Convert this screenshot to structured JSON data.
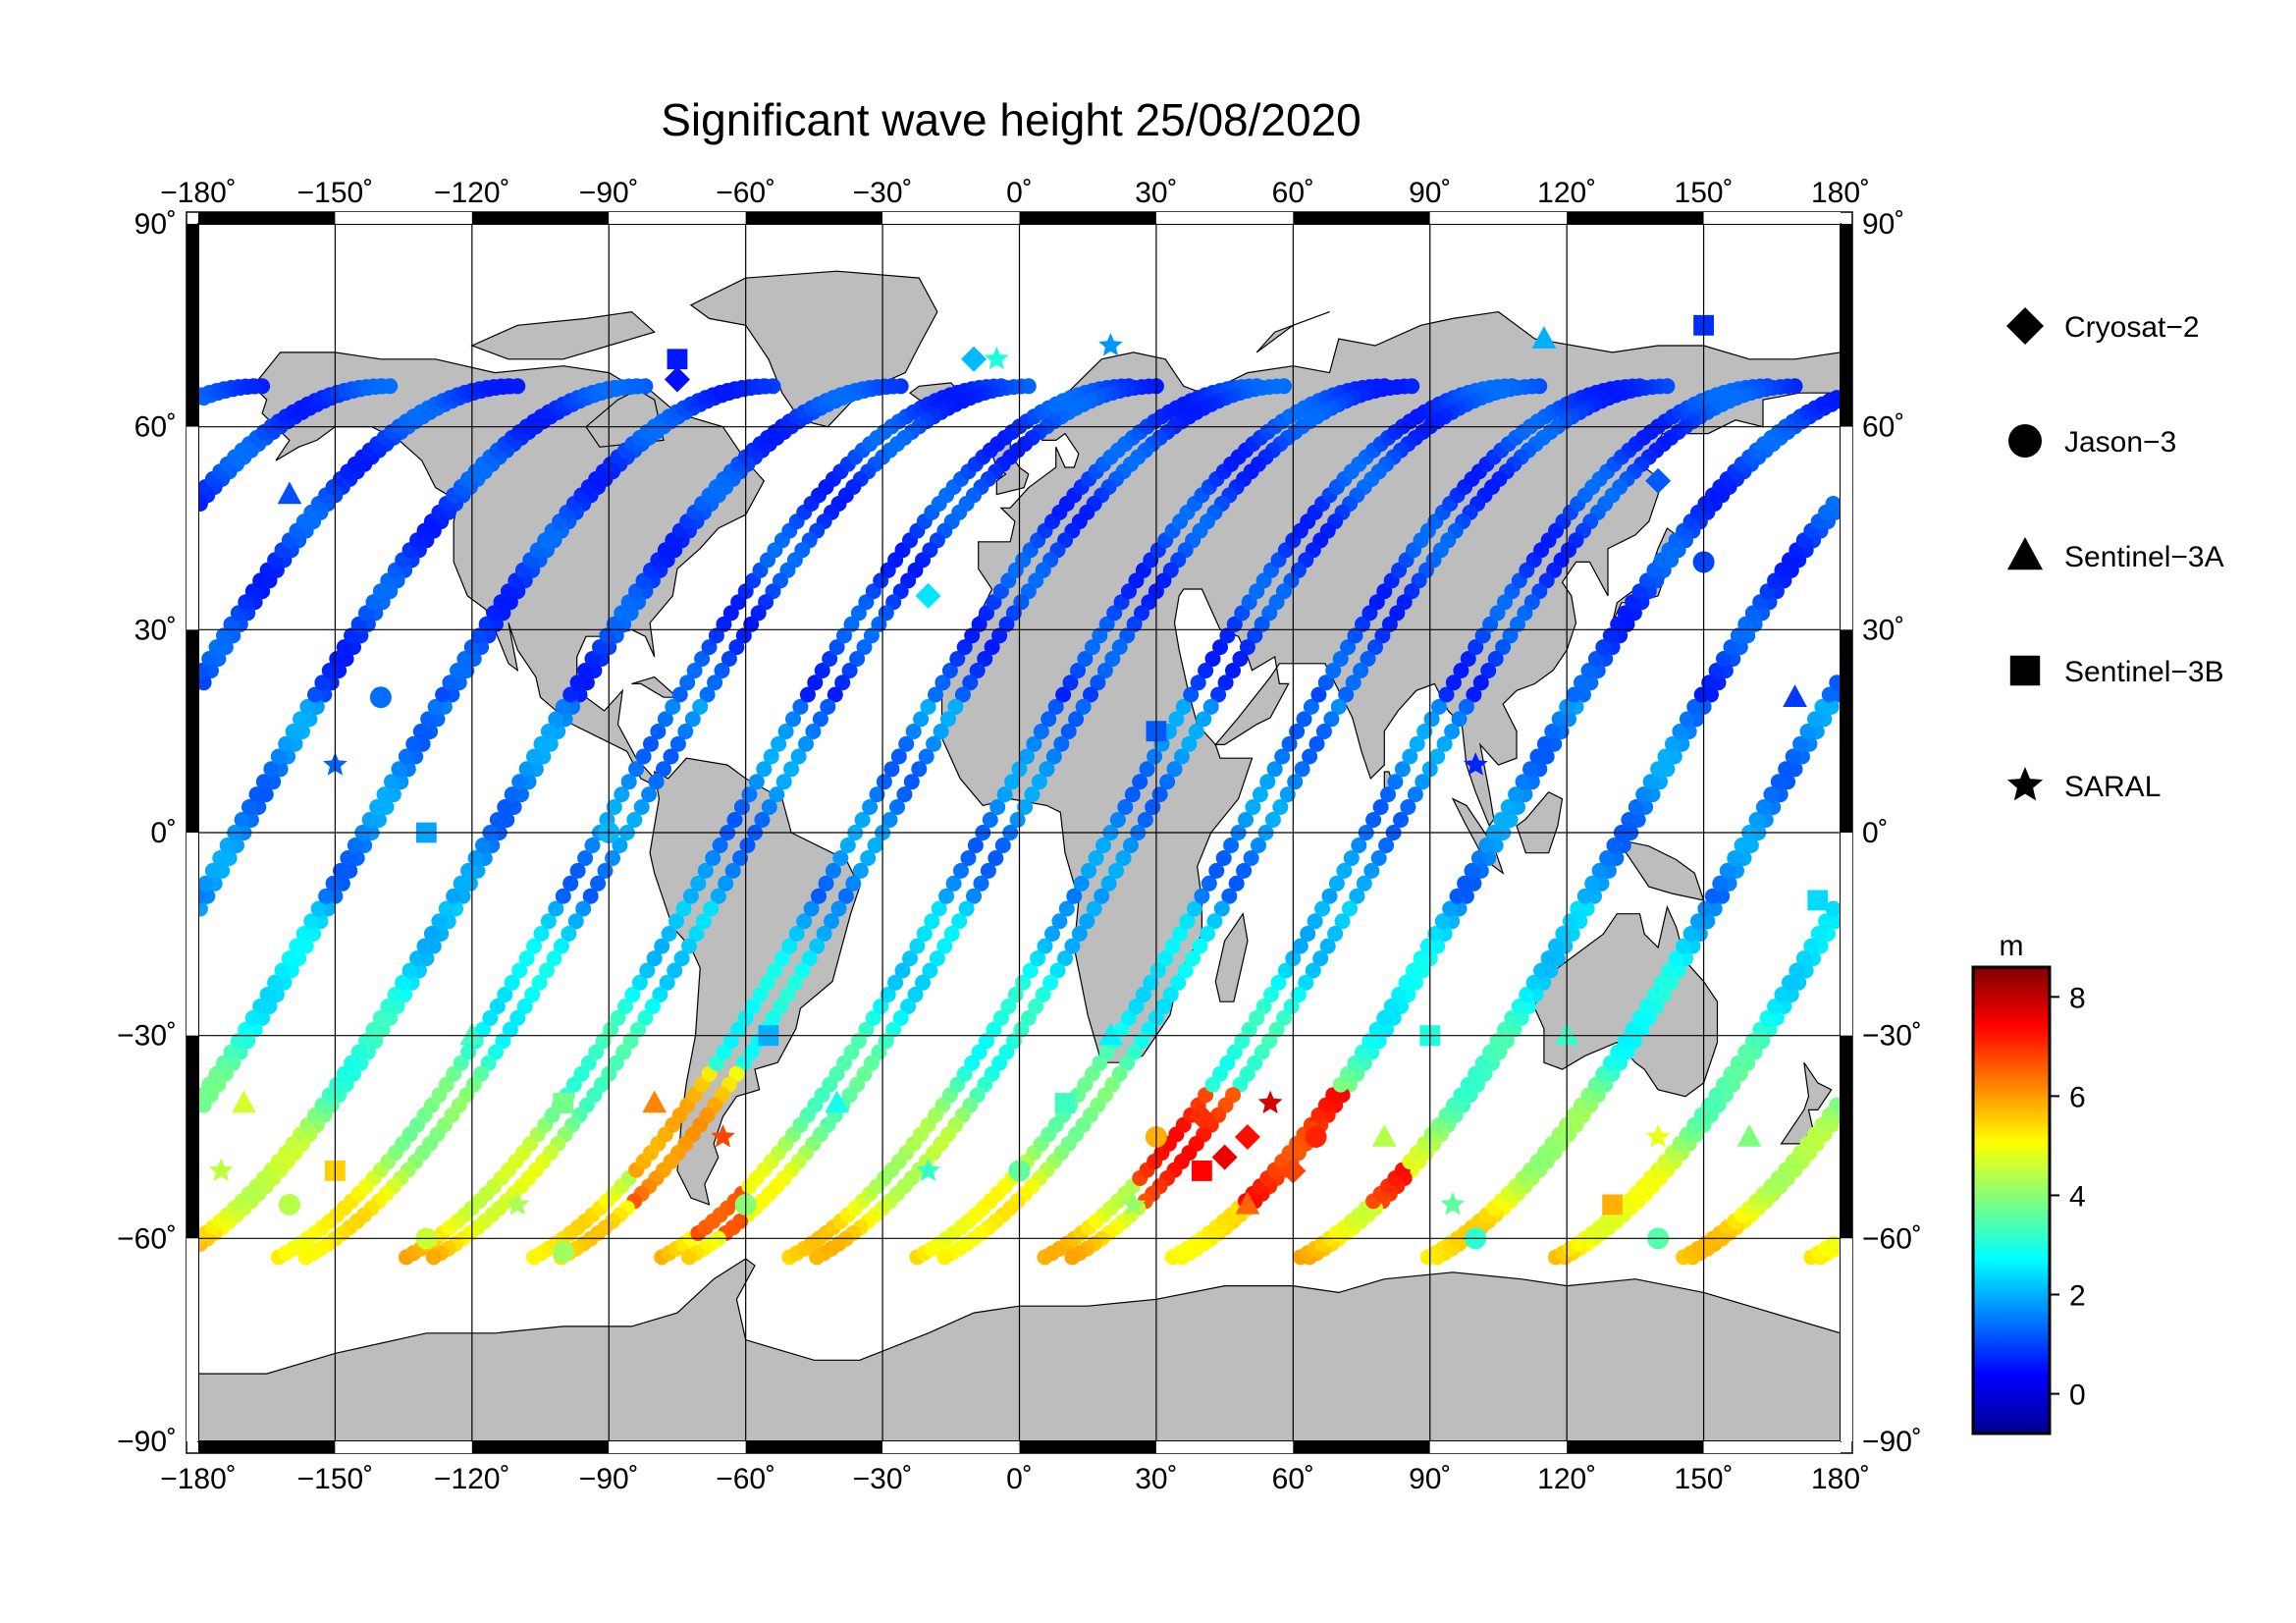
{
  "title": "Significant wave height 25/08/2020",
  "map": {
    "projection": "equirectangular",
    "lon_range": [
      -180,
      180
    ],
    "lat_range": [
      -90,
      90
    ],
    "lon_ticks": [
      -180,
      -150,
      -120,
      -90,
      -60,
      -30,
      0,
      30,
      60,
      90,
      120,
      150,
      180
    ],
    "lat_ticks": [
      90,
      60,
      30,
      0,
      -30,
      -60,
      -90
    ],
    "lon_tick_labels": [
      "−180˚",
      "−150˚",
      "−120˚",
      "−90˚",
      "−60˚",
      "−30˚",
      "0˚",
      "30˚",
      "60˚",
      "90˚",
      "120˚",
      "150˚",
      "180˚"
    ],
    "lat_tick_labels": [
      "90˚",
      "60˚",
      "30˚",
      "0˚",
      "−30˚",
      "−60˚",
      "−90˚"
    ],
    "grid": true,
    "land_color": "#bdbdbd",
    "ocean_color": "#ffffff"
  },
  "legend": {
    "placement": "right",
    "items": [
      {
        "label": "Cryosat−2",
        "symbol": "diamond-icon"
      },
      {
        "label": "Jason−3",
        "symbol": "circle-icon"
      },
      {
        "label": "Sentinel−3A",
        "symbol": "triangle-icon"
      },
      {
        "label": "Sentinel−3B",
        "symbol": "square-icon"
      },
      {
        "label": "SARAL",
        "symbol": "star-icon"
      }
    ]
  },
  "colorbar": {
    "unit": "m",
    "range": [
      -0.8,
      8.6
    ],
    "ticks": [
      0,
      2,
      4,
      6,
      8
    ],
    "colormap": [
      "#00008f",
      "#0000ff",
      "#007fff",
      "#00ffff",
      "#7fff7f",
      "#ffff00",
      "#ff7f00",
      "#ff0000",
      "#7f0000"
    ]
  },
  "chart_data": {
    "type": "scatter",
    "title": "Significant wave height 25/08/2020",
    "xlabel": "",
    "ylabel": "",
    "xlim": [
      -180,
      180
    ],
    "ylim": [
      -90,
      90
    ],
    "value_unit": "m",
    "series": [
      {
        "name": "Cryosat−2",
        "marker": "diamond",
        "points": [
          [
            45,
            -48,
            7.6
          ],
          [
            40,
            -42,
            7.0
          ],
          [
            50,
            -45,
            7.3
          ],
          [
            60,
            -50,
            6.8
          ],
          [
            -10,
            70,
            2.1
          ],
          [
            -75,
            67,
            0.5
          ],
          [
            140,
            52,
            1.2
          ],
          [
            -20,
            35,
            2.5
          ]
        ]
      },
      {
        "name": "Jason−3",
        "marker": "circle",
        "points": [
          [
            -160,
            -55,
            4.4
          ],
          [
            -130,
            -60,
            4.6
          ],
          [
            -100,
            -62,
            4.2
          ],
          [
            -60,
            -55,
            4.0
          ],
          [
            0,
            -50,
            3.6
          ],
          [
            30,
            -45,
            5.8
          ],
          [
            65,
            -45,
            7.1
          ],
          [
            100,
            -60,
            3.1
          ],
          [
            140,
            -60,
            3.5
          ],
          [
            -140,
            20,
            1.4
          ],
          [
            -90,
            0,
            2.1
          ],
          [
            150,
            40,
            1.0
          ]
        ]
      },
      {
        "name": "Sentinel−3A",
        "marker": "triangle",
        "points": [
          [
            -170,
            -40,
            4.7
          ],
          [
            -120,
            -30,
            3.3
          ],
          [
            -80,
            -40,
            6.2
          ],
          [
            -40,
            -40,
            2.9
          ],
          [
            20,
            -30,
            2.6
          ],
          [
            50,
            -55,
            6.5
          ],
          [
            80,
            -45,
            4.4
          ],
          [
            120,
            -30,
            3.2
          ],
          [
            160,
            -45,
            3.9
          ],
          [
            115,
            73,
            2.0
          ],
          [
            -160,
            50,
            1.1
          ],
          [
            170,
            20,
            0.9
          ]
        ]
      },
      {
        "name": "Sentinel−3B",
        "marker": "square",
        "points": [
          [
            -150,
            -50,
            5.5
          ],
          [
            -100,
            -40,
            3.8
          ],
          [
            -55,
            -30,
            2.0
          ],
          [
            10,
            -40,
            3.3
          ],
          [
            40,
            -50,
            7.4
          ],
          [
            90,
            -30,
            3.0
          ],
          [
            130,
            -55,
            5.8
          ],
          [
            -75,
            70,
            0.6
          ],
          [
            150,
            75,
            0.8
          ],
          [
            -130,
            0,
            1.9
          ],
          [
            30,
            15,
            1.2
          ],
          [
            175,
            -10,
            2.4
          ]
        ]
      },
      {
        "name": "SARAL",
        "marker": "star",
        "points": [
          [
            -175,
            -50,
            4.5
          ],
          [
            -110,
            -55,
            4.3
          ],
          [
            -65,
            -45,
            6.8
          ],
          [
            -20,
            -50,
            3.2
          ],
          [
            25,
            -55,
            4.1
          ],
          [
            55,
            -40,
            7.8
          ],
          [
            95,
            -55,
            3.6
          ],
          [
            140,
            -45,
            4.9
          ],
          [
            -5,
            70,
            3.0
          ],
          [
            20,
            72,
            1.8
          ],
          [
            -150,
            10,
            1.3
          ],
          [
            100,
            10,
            0.7
          ]
        ]
      }
    ]
  }
}
